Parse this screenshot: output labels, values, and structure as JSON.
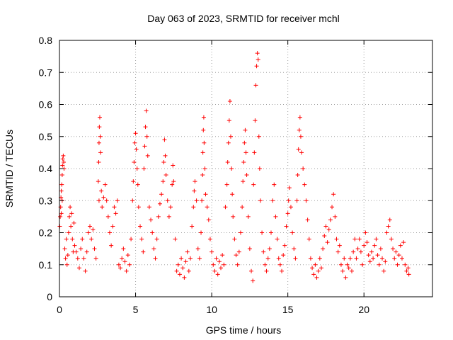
{
  "chart_data": {
    "type": "scatter",
    "title": "Day 063 of 2023, SRMTID for receiver mchl",
    "xlabel": "GPS time / hours",
    "ylabel": "SRMTID / TECUs",
    "xlim": [
      0,
      24.5
    ],
    "ylim": [
      0,
      0.8
    ],
    "xticks": [
      0,
      5,
      10,
      15,
      20
    ],
    "yticks": [
      0,
      0.1,
      0.2,
      0.3,
      0.4,
      0.5,
      0.6,
      0.7,
      0.8
    ],
    "xtick_labels": [
      "0",
      "5",
      "10",
      "15",
      "20"
    ],
    "ytick_labels": [
      "0",
      "0.1",
      "0.2",
      "0.3",
      "0.4",
      "0.5",
      "0.6",
      "0.7",
      "0.8"
    ],
    "grid": true,
    "marker": "plus",
    "color": "#ff0000",
    "series": [
      {
        "name": "SRMTID",
        "points": [
          [
            0.02,
            0.22
          ],
          [
            0.05,
            0.25
          ],
          [
            0.08,
            0.28
          ],
          [
            0.1,
            0.31
          ],
          [
            0.12,
            0.33
          ],
          [
            0.15,
            0.35
          ],
          [
            0.18,
            0.38
          ],
          [
            0.2,
            0.41
          ],
          [
            0.22,
            0.43
          ],
          [
            0.25,
            0.44
          ],
          [
            0.28,
            0.42
          ],
          [
            0.3,
            0.4
          ],
          [
            0.18,
            0.3
          ],
          [
            0.12,
            0.26
          ],
          [
            0.35,
            0.15
          ],
          [
            0.4,
            0.12
          ],
          [
            0.45,
            0.18
          ],
          [
            0.5,
            0.1
          ],
          [
            0.55,
            0.13
          ],
          [
            0.6,
            0.2
          ],
          [
            0.65,
            0.25
          ],
          [
            0.7,
            0.28
          ],
          [
            0.75,
            0.22
          ],
          [
            0.8,
            0.26
          ],
          [
            0.85,
            0.18
          ],
          [
            0.9,
            0.14
          ],
          [
            0.95,
            0.23
          ],
          [
            1.0,
            0.16
          ],
          [
            1.1,
            0.14
          ],
          [
            1.2,
            0.12
          ],
          [
            1.3,
            0.09
          ],
          [
            1.4,
            0.15
          ],
          [
            1.5,
            0.18
          ],
          [
            1.6,
            0.12
          ],
          [
            1.7,
            0.08
          ],
          [
            1.8,
            0.14
          ],
          [
            1.9,
            0.2
          ],
          [
            2.0,
            0.22
          ],
          [
            2.1,
            0.18
          ],
          [
            2.2,
            0.21
          ],
          [
            2.3,
            0.15
          ],
          [
            2.4,
            0.12
          ],
          [
            2.55,
            0.36
          ],
          [
            2.58,
            0.42
          ],
          [
            2.6,
            0.48
          ],
          [
            2.62,
            0.53
          ],
          [
            2.65,
            0.56
          ],
          [
            2.68,
            0.5
          ],
          [
            2.7,
            0.45
          ],
          [
            2.6,
            0.3
          ],
          [
            2.75,
            0.33
          ],
          [
            2.8,
            0.28
          ],
          [
            2.9,
            0.31
          ],
          [
            3.0,
            0.35
          ],
          [
            3.1,
            0.3
          ],
          [
            3.2,
            0.25
          ],
          [
            3.3,
            0.2
          ],
          [
            3.4,
            0.16
          ],
          [
            3.5,
            0.22
          ],
          [
            3.6,
            0.28
          ],
          [
            3.7,
            0.26
          ],
          [
            3.8,
            0.3
          ],
          [
            3.9,
            0.1
          ],
          [
            4.0,
            0.09
          ],
          [
            4.1,
            0.12
          ],
          [
            4.2,
            0.15
          ],
          [
            4.3,
            0.11
          ],
          [
            4.4,
            0.08
          ],
          [
            4.5,
            0.13
          ],
          [
            4.6,
            0.1
          ],
          [
            4.7,
            0.18
          ],
          [
            4.8,
            0.3
          ],
          [
            4.85,
            0.36
          ],
          [
            4.9,
            0.42
          ],
          [
            4.95,
            0.48
          ],
          [
            5.0,
            0.51
          ],
          [
            5.05,
            0.46
          ],
          [
            5.1,
            0.4
          ],
          [
            5.15,
            0.35
          ],
          [
            5.2,
            0.28
          ],
          [
            5.3,
            0.22
          ],
          [
            5.4,
            0.18
          ],
          [
            5.5,
            0.14
          ],
          [
            5.55,
            0.4
          ],
          [
            5.6,
            0.47
          ],
          [
            5.65,
            0.53
          ],
          [
            5.7,
            0.58
          ],
          [
            5.75,
            0.5
          ],
          [
            5.8,
            0.44
          ],
          [
            5.9,
            0.28
          ],
          [
            6.0,
            0.24
          ],
          [
            6.1,
            0.2
          ],
          [
            6.2,
            0.15
          ],
          [
            6.3,
            0.12
          ],
          [
            6.4,
            0.18
          ],
          [
            6.5,
            0.25
          ],
          [
            6.6,
            0.29
          ],
          [
            6.7,
            0.32
          ],
          [
            6.8,
            0.36
          ],
          [
            6.85,
            0.42
          ],
          [
            6.9,
            0.49
          ],
          [
            6.95,
            0.44
          ],
          [
            7.0,
            0.38
          ],
          [
            7.1,
            0.3
          ],
          [
            7.2,
            0.25
          ],
          [
            7.3,
            0.28
          ],
          [
            7.4,
            0.35
          ],
          [
            7.45,
            0.41
          ],
          [
            7.5,
            0.36
          ],
          [
            7.6,
            0.18
          ],
          [
            7.7,
            0.08
          ],
          [
            7.8,
            0.1
          ],
          [
            7.9,
            0.07
          ],
          [
            8.0,
            0.12
          ],
          [
            8.1,
            0.09
          ],
          [
            8.2,
            0.06
          ],
          [
            8.3,
            0.11
          ],
          [
            8.4,
            0.14
          ],
          [
            8.5,
            0.08
          ],
          [
            8.6,
            0.12
          ],
          [
            8.7,
            0.22
          ],
          [
            8.8,
            0.28
          ],
          [
            8.85,
            0.33
          ],
          [
            8.9,
            0.36
          ],
          [
            9.0,
            0.3
          ],
          [
            9.1,
            0.15
          ],
          [
            9.2,
            0.12
          ],
          [
            9.3,
            0.2
          ],
          [
            9.35,
            0.3
          ],
          [
            9.4,
            0.38
          ],
          [
            9.42,
            0.45
          ],
          [
            9.45,
            0.52
          ],
          [
            9.48,
            0.56
          ],
          [
            9.5,
            0.48
          ],
          [
            9.55,
            0.4
          ],
          [
            9.6,
            0.32
          ],
          [
            9.7,
            0.28
          ],
          [
            9.8,
            0.24
          ],
          [
            9.9,
            0.18
          ],
          [
            10.0,
            0.14
          ],
          [
            10.1,
            0.1
          ],
          [
            10.2,
            0.08
          ],
          [
            10.3,
            0.12
          ],
          [
            10.4,
            0.07
          ],
          [
            10.5,
            0.11
          ],
          [
            10.6,
            0.09
          ],
          [
            10.7,
            0.13
          ],
          [
            10.8,
            0.1
          ],
          [
            10.9,
            0.28
          ],
          [
            11.0,
            0.35
          ],
          [
            11.05,
            0.42
          ],
          [
            11.1,
            0.48
          ],
          [
            11.15,
            0.55
          ],
          [
            11.2,
            0.61
          ],
          [
            11.25,
            0.5
          ],
          [
            11.3,
            0.4
          ],
          [
            11.35,
            0.32
          ],
          [
            11.4,
            0.25
          ],
          [
            11.5,
            0.18
          ],
          [
            11.6,
            0.13
          ],
          [
            11.7,
            0.1
          ],
          [
            11.8,
            0.14
          ],
          [
            11.9,
            0.2
          ],
          [
            12.0,
            0.28
          ],
          [
            12.05,
            0.36
          ],
          [
            12.1,
            0.42
          ],
          [
            12.15,
            0.48
          ],
          [
            12.2,
            0.52
          ],
          [
            12.25,
            0.45
          ],
          [
            12.3,
            0.38
          ],
          [
            12.4,
            0.25
          ],
          [
            12.5,
            0.15
          ],
          [
            12.6,
            0.08
          ],
          [
            12.7,
            0.05
          ],
          [
            12.75,
            0.35
          ],
          [
            12.8,
            0.45
          ],
          [
            12.85,
            0.55
          ],
          [
            12.9,
            0.66
          ],
          [
            12.95,
            0.72
          ],
          [
            13.0,
            0.76
          ],
          [
            13.05,
            0.74
          ],
          [
            13.1,
            0.5
          ],
          [
            13.15,
            0.4
          ],
          [
            13.2,
            0.3
          ],
          [
            13.3,
            0.2
          ],
          [
            13.4,
            0.14
          ],
          [
            13.5,
            0.1
          ],
          [
            13.6,
            0.08
          ],
          [
            13.7,
            0.12
          ],
          [
            13.8,
            0.15
          ],
          [
            13.9,
            0.2
          ],
          [
            14.0,
            0.3
          ],
          [
            14.1,
            0.35
          ],
          [
            14.2,
            0.25
          ],
          [
            14.3,
            0.18
          ],
          [
            14.4,
            0.12
          ],
          [
            14.5,
            0.1
          ],
          [
            14.6,
            0.08
          ],
          [
            14.7,
            0.13
          ],
          [
            14.8,
            0.16
          ],
          [
            14.9,
            0.22
          ],
          [
            15.0,
            0.26
          ],
          [
            15.05,
            0.3
          ],
          [
            15.1,
            0.34
          ],
          [
            15.2,
            0.28
          ],
          [
            15.3,
            0.2
          ],
          [
            15.4,
            0.15
          ],
          [
            15.5,
            0.12
          ],
          [
            15.6,
            0.3
          ],
          [
            15.65,
            0.38
          ],
          [
            15.7,
            0.46
          ],
          [
            15.75,
            0.52
          ],
          [
            15.8,
            0.56
          ],
          [
            15.85,
            0.5
          ],
          [
            15.9,
            0.45
          ],
          [
            16.0,
            0.4
          ],
          [
            16.1,
            0.35
          ],
          [
            16.2,
            0.3
          ],
          [
            16.3,
            0.24
          ],
          [
            16.4,
            0.18
          ],
          [
            16.5,
            0.12
          ],
          [
            16.6,
            0.09
          ],
          [
            16.7,
            0.07
          ],
          [
            16.8,
            0.1
          ],
          [
            16.9,
            0.06
          ],
          [
            17.0,
            0.08
          ],
          [
            17.1,
            0.12
          ],
          [
            17.2,
            0.09
          ],
          [
            17.3,
            0.15
          ],
          [
            17.4,
            0.19
          ],
          [
            17.5,
            0.22
          ],
          [
            17.6,
            0.17
          ],
          [
            17.7,
            0.21
          ],
          [
            17.8,
            0.24
          ],
          [
            17.9,
            0.28
          ],
          [
            18.0,
            0.32
          ],
          [
            18.1,
            0.25
          ],
          [
            18.2,
            0.18
          ],
          [
            18.3,
            0.14
          ],
          [
            18.4,
            0.16
          ],
          [
            18.5,
            0.1
          ],
          [
            18.6,
            0.08
          ],
          [
            18.7,
            0.12
          ],
          [
            18.8,
            0.06
          ],
          [
            18.9,
            0.1
          ],
          [
            19.0,
            0.09
          ],
          [
            19.1,
            0.12
          ],
          [
            19.2,
            0.08
          ],
          [
            19.3,
            0.14
          ],
          [
            19.4,
            0.18
          ],
          [
            19.5,
            0.12
          ],
          [
            19.6,
            0.15
          ],
          [
            19.7,
            0.18
          ],
          [
            19.8,
            0.14
          ],
          [
            19.9,
            0.1
          ],
          [
            20.0,
            0.16
          ],
          [
            20.1,
            0.2
          ],
          [
            20.2,
            0.17
          ],
          [
            20.3,
            0.13
          ],
          [
            20.4,
            0.11
          ],
          [
            20.5,
            0.14
          ],
          [
            20.6,
            0.12
          ],
          [
            20.7,
            0.16
          ],
          [
            20.8,
            0.18
          ],
          [
            20.9,
            0.13
          ],
          [
            21.0,
            0.1
          ],
          [
            21.1,
            0.15
          ],
          [
            21.2,
            0.12
          ],
          [
            21.3,
            0.08
          ],
          [
            21.4,
            0.11
          ],
          [
            21.5,
            0.2
          ],
          [
            21.6,
            0.22
          ],
          [
            21.7,
            0.24
          ],
          [
            21.8,
            0.18
          ],
          [
            21.9,
            0.15
          ],
          [
            22.0,
            0.12
          ],
          [
            22.1,
            0.14
          ],
          [
            22.2,
            0.1
          ],
          [
            22.3,
            0.13
          ],
          [
            22.4,
            0.16
          ],
          [
            22.5,
            0.12
          ],
          [
            22.6,
            0.17
          ],
          [
            22.7,
            0.1
          ],
          [
            22.8,
            0.08
          ],
          [
            22.9,
            0.09
          ],
          [
            22.95,
            0.07
          ]
        ]
      }
    ]
  }
}
